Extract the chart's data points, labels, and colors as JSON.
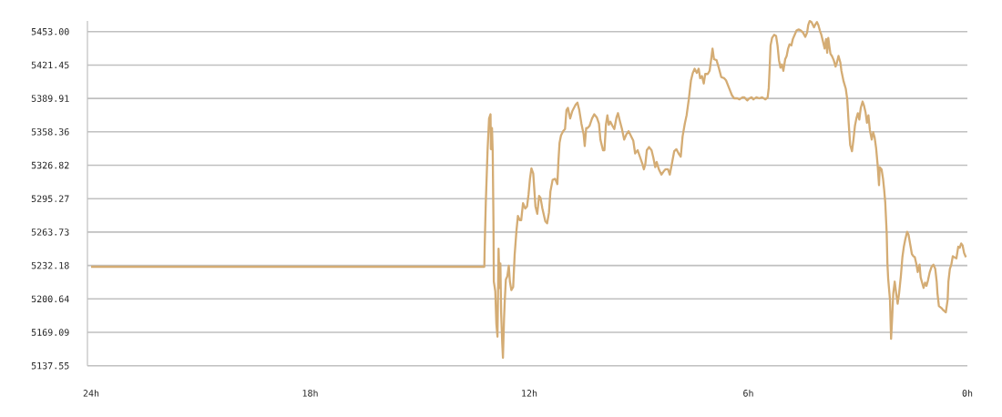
{
  "chart_data": {
    "type": "line",
    "x": [
      24.0,
      13.23,
      13.22,
      13.19,
      13.14,
      13.1,
      13.06,
      13.05,
      13.02,
      13.0,
      12.98,
      12.97,
      12.93,
      12.9,
      12.87,
      12.84,
      12.81,
      12.79,
      12.77,
      12.74,
      12.72,
      12.69,
      12.67,
      12.64,
      12.6,
      12.56,
      12.53,
      12.49,
      12.44,
      12.4,
      12.35,
      12.31,
      12.26,
      12.22,
      12.17,
      12.11,
      12.06,
      12.02,
      11.98,
      11.94,
      11.89,
      11.83,
      11.78,
      11.73,
      11.69,
      11.64,
      11.56,
      11.51,
      11.46,
      11.42,
      11.36,
      11.29,
      11.23,
      11.2,
      11.17,
      11.13,
      11.07,
      11.02,
      10.98,
      10.94,
      10.88,
      10.82,
      10.73,
      10.68,
      10.63,
      10.57,
      10.51,
      10.48,
      10.44,
      10.4,
      10.35,
      10.28,
      10.22,
      10.15,
      10.09,
      10.05,
      9.98,
      9.94,
      9.9,
      9.86,
      9.82,
      9.78,
      9.72,
      9.67,
      9.61,
      9.57,
      9.52,
      9.46,
      9.4,
      9.34,
      9.28,
      9.15,
      9.1,
      9.03,
      8.97,
      8.9,
      8.86,
      8.82,
      8.78,
      8.72,
      8.65,
      8.6,
      8.55,
      8.51,
      8.45,
      8.38,
      8.32,
      8.27,
      8.2,
      8.15,
      8.1,
      8.03,
      7.97,
      7.91,
      7.85,
      7.8,
      7.74,
      7.69,
      7.63,
      7.57,
      7.52,
      7.47,
      7.41,
      7.36,
      7.32,
      7.27,
      7.22,
      7.18,
      7.11,
      7.06,
      7.02,
      6.98,
      6.94,
      6.87,
      6.81,
      6.74,
      6.66,
      6.61,
      6.53,
      6.45,
      6.39,
      6.3,
      6.24,
      6.16,
      6.11,
      6.03,
      5.97,
      5.91,
      5.86,
      5.78,
      5.7,
      5.62,
      5.53,
      5.47,
      5.44,
      5.41,
      5.39,
      5.35,
      5.29,
      5.24,
      5.2,
      5.16,
      5.12,
      5.08,
      5.04,
      4.99,
      4.95,
      4.91,
      4.87,
      4.82,
      4.78,
      4.73,
      4.68,
      4.62,
      4.56,
      4.5,
      4.44,
      4.39,
      4.36,
      4.32,
      4.27,
      4.2,
      4.16,
      4.12,
      4.08,
      4.04,
      4.0,
      3.95,
      3.91,
      3.87,
      3.84,
      3.81,
      3.78,
      3.75,
      3.71,
      3.66,
      3.61,
      3.58,
      3.53,
      3.48,
      3.45,
      3.39,
      3.33,
      3.29,
      3.25,
      3.21,
      3.16,
      3.12,
      3.08,
      3.04,
      3.0,
      2.96,
      2.92,
      2.87,
      2.83,
      2.79,
      2.75,
      2.71,
      2.67,
      2.62,
      2.58,
      2.54,
      2.5,
      2.46,
      2.42,
      2.4,
      2.35,
      2.31,
      2.28,
      2.25,
      2.21,
      2.19,
      2.17,
      2.12,
      2.09,
      2.06,
      2.03,
      1.99,
      1.95,
      1.91,
      1.87,
      1.82,
      1.78,
      1.74,
      1.7,
      1.65,
      1.61,
      1.56,
      1.52,
      1.48,
      1.44,
      1.4,
      1.36,
      1.31,
      1.28,
      1.24,
      1.2,
      1.16,
      1.12,
      1.08,
      1.03,
      0.98,
      0.93,
      0.88,
      0.84,
      0.82,
      0.78,
      0.71,
      0.66,
      0.59,
      0.54,
      0.52,
      0.48,
      0.44,
      0.4,
      0.36,
      0.3,
      0.25,
      0.21,
      0.17,
      0.13,
      0.09,
      0.04
    ],
    "values": [
      5231,
      5231,
      5251,
      5291,
      5342,
      5371,
      5375,
      5342,
      5362,
      5339,
      5274,
      5217,
      5208,
      5177,
      5165,
      5248,
      5211,
      5234,
      5188,
      5159,
      5145,
      5182,
      5199,
      5219,
      5222,
      5232,
      5217,
      5209,
      5212,
      5242,
      5265,
      5279,
      5275,
      5275,
      5291,
      5286,
      5288,
      5299,
      5314,
      5324,
      5319,
      5288,
      5281,
      5298,
      5296,
      5286,
      5274,
      5272,
      5282,
      5302,
      5313,
      5314,
      5309,
      5331,
      5348,
      5355,
      5359,
      5361,
      5379,
      5381,
      5371,
      5378,
      5384,
      5386,
      5379,
      5366,
      5356,
      5345,
      5362,
      5362,
      5364,
      5371,
      5375,
      5372,
      5366,
      5351,
      5341,
      5341,
      5365,
      5374,
      5365,
      5368,
      5364,
      5361,
      5372,
      5376,
      5369,
      5361,
      5351,
      5356,
      5359,
      5350,
      5338,
      5341,
      5335,
      5328,
      5323,
      5328,
      5341,
      5344,
      5341,
      5334,
      5325,
      5330,
      5323,
      5318,
      5321,
      5323,
      5323,
      5318,
      5327,
      5340,
      5342,
      5338,
      5335,
      5354,
      5366,
      5374,
      5389,
      5407,
      5414,
      5418,
      5414,
      5418,
      5409,
      5411,
      5404,
      5413,
      5413,
      5416,
      5426,
      5437,
      5427,
      5426,
      5419,
      5410,
      5409,
      5407,
      5400,
      5393,
      5390,
      5390,
      5389,
      5391,
      5391,
      5388,
      5390,
      5391,
      5389,
      5391,
      5390,
      5391,
      5389,
      5391,
      5400,
      5423,
      5440,
      5447,
      5450,
      5449,
      5440,
      5426,
      5419,
      5422,
      5416,
      5427,
      5430,
      5437,
      5441,
      5440,
      5446,
      5450,
      5454,
      5455,
      5454,
      5452,
      5448,
      5452,
      5459,
      5463,
      5462,
      5457,
      5460,
      5462,
      5459,
      5454,
      5450,
      5443,
      5437,
      5446,
      5433,
      5447,
      5439,
      5432,
      5430,
      5426,
      5420,
      5423,
      5430,
      5424,
      5416,
      5406,
      5399,
      5389,
      5366,
      5346,
      5340,
      5351,
      5364,
      5371,
      5376,
      5370,
      5381,
      5387,
      5383,
      5377,
      5367,
      5374,
      5360,
      5351,
      5358,
      5353,
      5343,
      5328,
      5308,
      5325,
      5323,
      5314,
      5304,
      5292,
      5263,
      5234,
      5220,
      5200,
      5163,
      5183,
      5206,
      5217,
      5206,
      5196,
      5206,
      5223,
      5240,
      5250,
      5257,
      5264,
      5261,
      5251,
      5243,
      5241,
      5240,
      5234,
      5226,
      5233,
      5221,
      5216,
      5211,
      5216,
      5213,
      5218,
      5226,
      5231,
      5233,
      5229,
      5217,
      5206,
      5194,
      5192,
      5190,
      5188,
      5200,
      5217,
      5229,
      5233,
      5241,
      5240,
      5239,
      5250,
      5249,
      5253,
      5251,
      5244,
      5240
    ],
    "color": "#d4ac74",
    "xlim": [
      24.1,
      0
    ],
    "xticks": [
      {
        "value": 24,
        "label": "24h"
      },
      {
        "value": 18,
        "label": "18h"
      },
      {
        "value": 12,
        "label": "12h"
      },
      {
        "value": 6,
        "label": "6h"
      },
      {
        "value": 0,
        "label": "0h"
      }
    ],
    "ylim": [
      5137.55,
      5463
    ],
    "yticks": [
      5137.55,
      5169.09,
      5200.64,
      5232.18,
      5263.73,
      5295.27,
      5326.82,
      5358.36,
      5389.91,
      5421.45,
      {
        "value": 5453,
        "label": "5453.00"
      }
    ],
    "grid": "y",
    "line_style": "solid"
  }
}
